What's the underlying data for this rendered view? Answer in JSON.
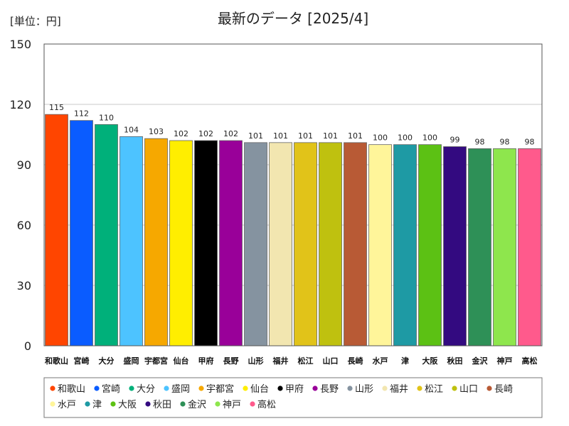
{
  "unit_label": "[単位：円]",
  "chart_data": {
    "type": "bar",
    "title": "最新のデータ [2025/4]",
    "xlabel": "",
    "ylabel": "",
    "ylim": [
      0,
      150
    ],
    "yticks": [
      0,
      30,
      60,
      90,
      120,
      150
    ],
    "grid": true,
    "legend_position": "bottom",
    "categories": [
      "和歌山",
      "宮崎",
      "大分",
      "盛岡",
      "宇都宮",
      "仙台",
      "甲府",
      "長野",
      "山形",
      "福井",
      "松江",
      "山口",
      "長崎",
      "水戸",
      "津",
      "大阪",
      "秋田",
      "金沢",
      "神戸",
      "高松"
    ],
    "values": [
      115,
      112,
      110,
      104,
      103,
      102,
      102,
      102,
      101,
      101,
      101,
      101,
      101,
      100,
      100,
      100,
      99,
      98,
      98,
      98
    ],
    "colors": [
      "#ff4500",
      "#0a5cff",
      "#00b07a",
      "#4dc3ff",
      "#f6a800",
      "#ffee00",
      "#000000",
      "#990099",
      "#8593a0",
      "#f2e6b0",
      "#e1c319",
      "#bfc10f",
      "#b85a35",
      "#fff59a",
      "#1e9aa4",
      "#5cc114",
      "#330a80",
      "#2e9057",
      "#8ee64d",
      "#ff5a8c"
    ]
  }
}
